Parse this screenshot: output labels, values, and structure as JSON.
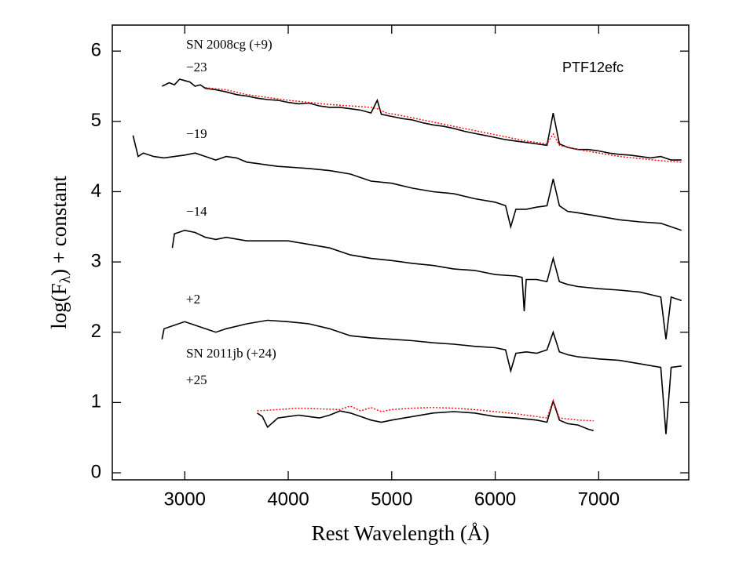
{
  "chart_data": {
    "type": "line",
    "annotation": "PTF12efc",
    "xlabel": "Rest Wavelength (Å)",
    "ylabel_parts": [
      "log(F",
      "λ",
      ") + constant"
    ],
    "xlim": [
      2300,
      7870
    ],
    "ylim": [
      -0.1,
      6.37
    ],
    "xticks": [
      3000,
      4000,
      5000,
      6000,
      7000
    ],
    "yticks": [
      0,
      1,
      2,
      3,
      4,
      5,
      6
    ],
    "grid": false,
    "series": [
      {
        "name": "−23",
        "color": "#000000",
        "style": "solid",
        "x": [
          2780,
          2850,
          2900,
          2950,
          3000,
          3050,
          3100,
          3150,
          3200,
          3300,
          3400,
          3500,
          3600,
          3700,
          3800,
          3900,
          4000,
          4100,
          4200,
          4300,
          4400,
          4500,
          4600,
          4700,
          4800,
          4860,
          4900,
          5000,
          5100,
          5200,
          5300,
          5400,
          5500,
          5600,
          5700,
          5800,
          5900,
          6000,
          6100,
          6200,
          6300,
          6400,
          6500,
          6560,
          6620,
          6700,
          6800,
          6900,
          7000,
          7100,
          7200,
          7300,
          7400,
          7500,
          7600,
          7700,
          7800
        ],
        "values": [
          5.5,
          5.55,
          5.52,
          5.6,
          5.58,
          5.56,
          5.5,
          5.52,
          5.47,
          5.45,
          5.42,
          5.38,
          5.36,
          5.33,
          5.31,
          5.3,
          5.27,
          5.25,
          5.26,
          5.22,
          5.2,
          5.2,
          5.18,
          5.16,
          5.12,
          5.3,
          5.1,
          5.07,
          5.04,
          5.02,
          4.98,
          4.95,
          4.93,
          4.9,
          4.86,
          4.83,
          4.8,
          4.77,
          4.74,
          4.72,
          4.7,
          4.68,
          4.66,
          5.12,
          4.68,
          4.63,
          4.6,
          4.6,
          4.58,
          4.55,
          4.53,
          4.52,
          4.5,
          4.48,
          4.5,
          4.45,
          4.45
        ]
      },
      {
        "name": "SN 2008cg (+9)",
        "color": "#ff0000",
        "style": "dotted",
        "x": [
          3200,
          3400,
          3600,
          3800,
          4000,
          4200,
          4400,
          4600,
          4800,
          4860,
          4950,
          5100,
          5300,
          5500,
          5700,
          5900,
          6100,
          6300,
          6500,
          6560,
          6620,
          6800,
          7000,
          7200,
          7400,
          7600,
          7800
        ],
        "values": [
          5.48,
          5.45,
          5.38,
          5.34,
          5.3,
          5.27,
          5.24,
          5.22,
          5.2,
          5.18,
          5.12,
          5.08,
          5.02,
          4.96,
          4.9,
          4.84,
          4.78,
          4.72,
          4.68,
          4.82,
          4.66,
          4.6,
          4.55,
          4.5,
          4.47,
          4.44,
          4.42
        ]
      },
      {
        "name": "−19",
        "color": "#000000",
        "style": "solid",
        "x": [
          2500,
          2550,
          2600,
          2700,
          2800,
          2900,
          3000,
          3100,
          3200,
          3300,
          3400,
          3500,
          3600,
          3700,
          3800,
          3900,
          4000,
          4200,
          4400,
          4600,
          4800,
          5000,
          5200,
          5400,
          5600,
          5800,
          6000,
          6100,
          6150,
          6200,
          6300,
          6400,
          6500,
          6560,
          6620,
          6700,
          6800,
          7000,
          7200,
          7400,
          7600,
          7700,
          7800
        ],
        "values": [
          4.8,
          4.5,
          4.55,
          4.5,
          4.48,
          4.5,
          4.52,
          4.55,
          4.5,
          4.45,
          4.5,
          4.48,
          4.42,
          4.4,
          4.38,
          4.36,
          4.35,
          4.33,
          4.3,
          4.25,
          4.15,
          4.12,
          4.05,
          4.0,
          3.97,
          3.9,
          3.85,
          3.8,
          3.5,
          3.75,
          3.75,
          3.78,
          3.8,
          4.18,
          3.8,
          3.72,
          3.7,
          3.65,
          3.6,
          3.57,
          3.55,
          3.5,
          3.45
        ]
      },
      {
        "name": "−14",
        "color": "#000000",
        "style": "solid",
        "x": [
          2880,
          2900,
          3000,
          3100,
          3200,
          3300,
          3400,
          3600,
          3800,
          4000,
          4200,
          4400,
          4600,
          4800,
          5000,
          5200,
          5400,
          5600,
          5800,
          6000,
          6200,
          6260,
          6280,
          6300,
          6400,
          6500,
          6560,
          6620,
          6700,
          6800,
          7000,
          7200,
          7400,
          7600,
          7650,
          7700,
          7800
        ],
        "values": [
          3.2,
          3.4,
          3.45,
          3.42,
          3.35,
          3.32,
          3.35,
          3.3,
          3.3,
          3.3,
          3.25,
          3.2,
          3.1,
          3.05,
          3.02,
          2.98,
          2.95,
          2.9,
          2.88,
          2.82,
          2.8,
          2.78,
          2.3,
          2.75,
          2.75,
          2.72,
          3.05,
          2.72,
          2.68,
          2.65,
          2.62,
          2.6,
          2.57,
          2.5,
          1.9,
          2.5,
          2.45
        ]
      },
      {
        "name": "+2",
        "color": "#000000",
        "style": "solid",
        "x": [
          2780,
          2800,
          2900,
          3000,
          3100,
          3200,
          3300,
          3400,
          3600,
          3800,
          4000,
          4200,
          4400,
          4600,
          4800,
          5000,
          5200,
          5400,
          5600,
          5800,
          6000,
          6100,
          6150,
          6200,
          6300,
          6400,
          6500,
          6560,
          6620,
          6700,
          6800,
          7000,
          7200,
          7400,
          7600,
          7650,
          7700,
          7800
        ],
        "values": [
          1.9,
          2.05,
          2.1,
          2.15,
          2.1,
          2.05,
          2.0,
          2.05,
          2.12,
          2.17,
          2.15,
          2.12,
          2.05,
          1.95,
          1.92,
          1.9,
          1.88,
          1.85,
          1.83,
          1.8,
          1.78,
          1.75,
          1.45,
          1.7,
          1.72,
          1.7,
          1.75,
          2.0,
          1.72,
          1.68,
          1.65,
          1.62,
          1.6,
          1.55,
          1.5,
          0.55,
          1.5,
          1.52
        ]
      },
      {
        "name": "+25",
        "color": "#000000",
        "style": "solid",
        "x": [
          3700,
          3750,
          3800,
          3900,
          4000,
          4100,
          4200,
          4300,
          4400,
          4500,
          4600,
          4700,
          4800,
          4900,
          5000,
          5200,
          5400,
          5600,
          5800,
          6000,
          6200,
          6400,
          6500,
          6560,
          6620,
          6700,
          6800,
          6900,
          6950
        ],
        "values": [
          0.85,
          0.8,
          0.65,
          0.78,
          0.8,
          0.82,
          0.8,
          0.78,
          0.82,
          0.88,
          0.85,
          0.8,
          0.75,
          0.72,
          0.75,
          0.8,
          0.85,
          0.87,
          0.85,
          0.8,
          0.78,
          0.75,
          0.72,
          1.02,
          0.75,
          0.7,
          0.68,
          0.62,
          0.6
        ]
      },
      {
        "name": "SN 2011jb (+24)",
        "color": "#ff0000",
        "style": "dotted",
        "x": [
          3700,
          3900,
          4100,
          4300,
          4500,
          4600,
          4700,
          4800,
          4900,
          5000,
          5200,
          5400,
          5600,
          5800,
          6000,
          6200,
          6400,
          6500,
          6560,
          6620,
          6800,
          6950
        ],
        "values": [
          0.88,
          0.9,
          0.92,
          0.91,
          0.9,
          0.95,
          0.88,
          0.93,
          0.87,
          0.9,
          0.92,
          0.93,
          0.92,
          0.9,
          0.87,
          0.84,
          0.8,
          0.78,
          1.03,
          0.78,
          0.75,
          0.74
        ]
      }
    ]
  }
}
